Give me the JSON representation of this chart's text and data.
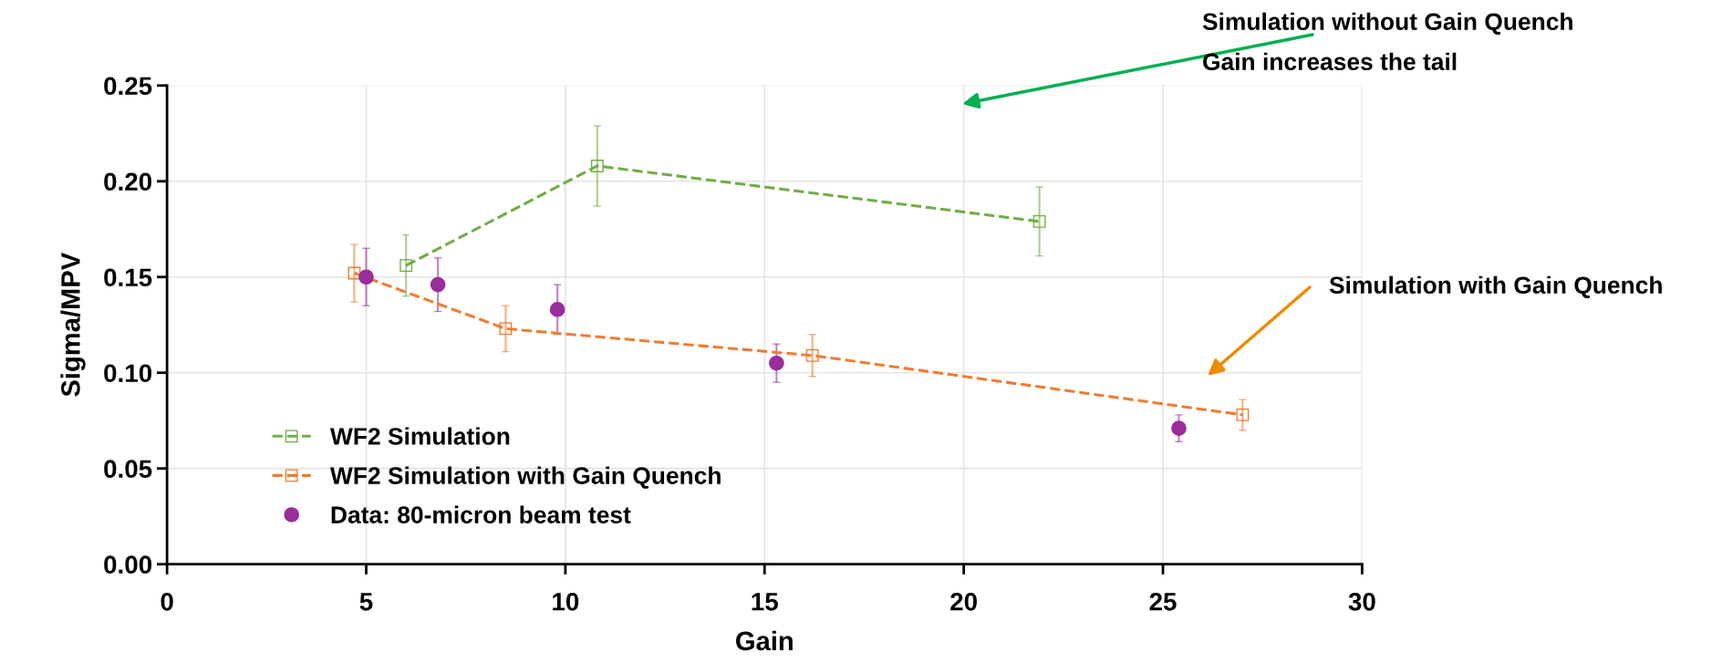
{
  "chart_data": {
    "type": "line",
    "xlabel": "Gain",
    "ylabel": "Sigma/MPV",
    "xlim": [
      0,
      30
    ],
    "xticks": [
      0,
      5,
      10,
      15,
      20,
      25,
      30
    ],
    "ylim": [
      0,
      0.25
    ],
    "yticks": [
      {
        "value": 0,
        "label": "0.00"
      },
      {
        "value": 0.05,
        "label": "0.05"
      },
      {
        "value": 0.1,
        "label": "0.10"
      },
      {
        "value": 0.15,
        "label": "0.15"
      },
      {
        "value": 0.2,
        "label": "0.20"
      },
      {
        "value": 0.25,
        "label": "0.25"
      }
    ],
    "grid": true,
    "legend": "bottom left",
    "series": [
      {
        "name": "WF2 Simulation",
        "color": "#70ad47",
        "marker": "square",
        "line_style": "dashed",
        "x": [
          6.0,
          10.8,
          21.9
        ],
        "values": [
          0.156,
          0.208,
          0.179
        ],
        "errors": [
          0.016,
          0.021,
          0.018
        ]
      },
      {
        "name": "WF2 Simulation with Gain Quench",
        "color": "#ed7d31",
        "marker": "square",
        "line_style": "dashed",
        "x": [
          4.7,
          8.5,
          16.2,
          27.0
        ],
        "values": [
          0.152,
          0.123,
          0.109,
          0.078
        ],
        "errors": [
          0.015,
          0.012,
          0.011,
          0.008
        ]
      },
      {
        "name": "Data: 80-micron beam test",
        "type": "scatter",
        "color": "#9b2d9b",
        "marker": "circle",
        "x": [
          5.0,
          6.8,
          9.8,
          15.3,
          25.4
        ],
        "values": [
          0.15,
          0.146,
          0.133,
          0.105,
          0.071
        ],
        "errors": [
          0.015,
          0.014,
          0.013,
          0.01,
          0.007
        ]
      }
    ],
    "annotations": [
      "Simulation without Gain Quench",
      "Gain increases the tail",
      "Simulation with Gain Quench"
    ]
  }
}
